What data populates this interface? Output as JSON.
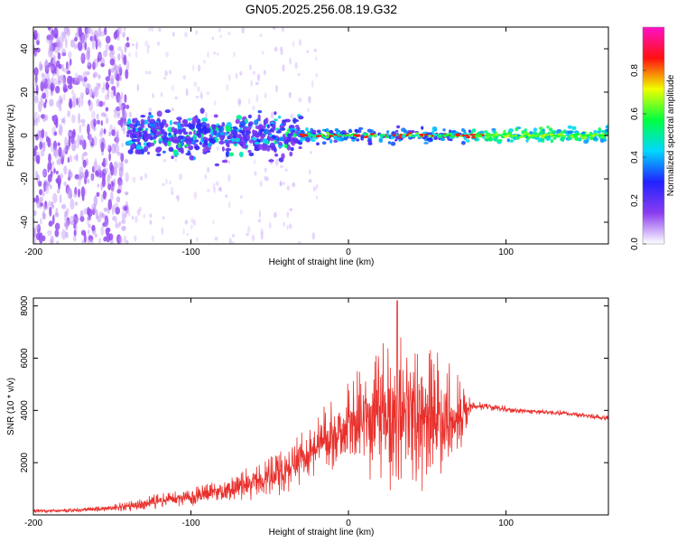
{
  "chart_data": [
    {
      "type": "heatmap",
      "title": "GN05.2025.256.08.19.G32",
      "xlabel": "Height of straight line (km)",
      "ylabel": "Frequency (Hz)",
      "xlim": [
        -200,
        165
      ],
      "ylim": [
        -50,
        50
      ],
      "xticks": [
        -200,
        -100,
        0,
        100
      ],
      "yticks": [
        -40,
        -20,
        0,
        20,
        40
      ],
      "colorbar": {
        "label": "Normalized spectral amplitude",
        "range": [
          0.0,
          1.0
        ],
        "ticks": [
          0.0,
          0.2,
          0.4,
          0.6,
          0.8
        ],
        "colors": [
          "#ffffff",
          "#8a3cf0",
          "#2222ff",
          "#00d8ff",
          "#00ff40",
          "#f0ff00",
          "#ff1010",
          "#ff10c8"
        ]
      },
      "noise_region_km": [
        -200,
        -140
      ],
      "broad_band_region_km": [
        -140,
        -30
      ],
      "narrow_line_region_km": [
        -30,
        165
      ],
      "line_frequency_hz": 0
    },
    {
      "type": "line",
      "xlabel": "Height of straight line (km)",
      "ylabel": "SNR (10 * v/v)",
      "xlim": [
        -200,
        165
      ],
      "ylim": [
        0,
        8300
      ],
      "xticks": [
        -200,
        -100,
        0,
        100
      ],
      "yticks": [
        2000,
        4000,
        6000,
        8000
      ],
      "line_color": "#e8302c",
      "envelope": {
        "x": [
          -200,
          -175,
          -150,
          -125,
          -100,
          -85,
          -70,
          -55,
          -45,
          -35,
          -25,
          -15,
          -5,
          5,
          15,
          25,
          32,
          40,
          50,
          60,
          70,
          78,
          85,
          95,
          105,
          120,
          135,
          150,
          165
        ],
        "center": [
          150,
          170,
          250,
          480,
          700,
          850,
          1050,
          1350,
          1600,
          1900,
          2300,
          2800,
          3300,
          3600,
          3700,
          3900,
          4000,
          3850,
          3700,
          3600,
          3700,
          4200,
          4150,
          4100,
          4000,
          3950,
          3900,
          3800,
          3700
        ],
        "amplitude": [
          80,
          90,
          150,
          300,
          400,
          450,
          600,
          800,
          1000,
          1100,
          1200,
          1400,
          1800,
          2200,
          2500,
          2900,
          3800,
          3200,
          3000,
          2500,
          2000,
          250,
          150,
          130,
          120,
          110,
          110,
          110,
          110
        ]
      },
      "peak": {
        "x": 31,
        "y": 8200
      }
    }
  ]
}
